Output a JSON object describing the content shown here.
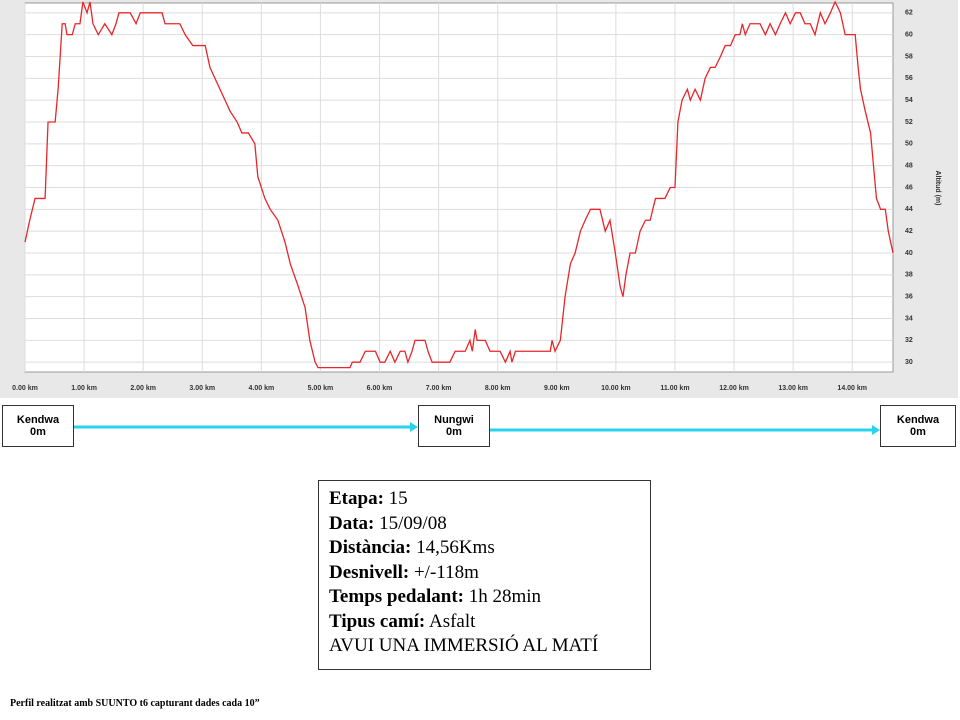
{
  "chart_data": {
    "type": "line",
    "y_label": "Altitud (m)",
    "color": "#e8262a",
    "grid": true,
    "x": [
      0,
      0.08,
      0.17,
      0.34,
      0.39,
      0.51,
      0.56,
      0.63,
      0.68,
      0.71,
      0.8,
      0.85,
      0.93,
      0.98,
      1.05,
      1.1,
      1.15,
      1.24,
      1.35,
      1.47,
      1.54,
      1.59,
      1.78,
      1.88,
      1.95,
      2.32,
      2.37,
      2.62,
      2.71,
      2.84,
      3.05,
      3.13,
      3.3,
      3.47,
      3.59,
      3.67,
      3.78,
      3.89,
      3.94,
      4.06,
      4.15,
      4.28,
      4.4,
      4.49,
      4.62,
      4.74,
      4.82,
      4.91,
      4.96,
      5.5,
      5.54,
      5.67,
      5.76,
      5.93,
      6.01,
      6.09,
      6.18,
      6.26,
      6.35,
      6.43,
      6.48,
      6.55,
      6.6,
      6.77,
      6.82,
      6.89,
      7.19,
      7.28,
      7.45,
      7.53,
      7.57,
      7.62,
      7.65,
      7.79,
      7.87,
      8.04,
      8.13,
      8.21,
      8.24,
      8.3,
      8.8,
      8.89,
      8.92,
      8.97,
      9.06,
      9.14,
      9.23,
      9.31,
      9.4,
      9.48,
      9.57,
      9.73,
      9.82,
      9.9,
      9.99,
      10.07,
      10.12,
      10.17,
      10.24,
      10.33,
      10.41,
      10.5,
      10.58,
      10.67,
      10.83,
      10.92,
      11.0,
      11.05,
      11.12,
      11.21,
      11.26,
      11.34,
      11.43,
      11.51,
      11.6,
      11.68,
      11.77,
      11.85,
      11.94,
      12.02,
      12.1,
      12.14,
      12.19,
      12.27,
      12.44,
      12.53,
      12.61,
      12.7,
      12.78,
      12.87,
      12.95,
      13.04,
      13.12,
      13.2,
      13.29,
      13.37,
      13.46,
      13.54,
      13.63,
      13.71,
      13.8,
      13.88,
      14.05,
      14.1,
      14.14,
      14.22,
      14.31,
      14.36,
      14.41,
      14.48,
      14.56,
      14.61,
      14.69
    ],
    "values": [
      41,
      43,
      45,
      45,
      52,
      52,
      55,
      61,
      61,
      60,
      60,
      61,
      61,
      63,
      62,
      63,
      61,
      60,
      61,
      60,
      61,
      62,
      62,
      61,
      62,
      62,
      61,
      61,
      60,
      59,
      59,
      57,
      55,
      53,
      52,
      51,
      51,
      50,
      47,
      45,
      44,
      43,
      41,
      39,
      37,
      35,
      32,
      30,
      29.5,
      29.5,
      30,
      30,
      31,
      31,
      30,
      30,
      31,
      30,
      31,
      31,
      30,
      31,
      32,
      32,
      31,
      30,
      30,
      31,
      31,
      32,
      31,
      33,
      32,
      32,
      31,
      31,
      30,
      31,
      30,
      31,
      31,
      31,
      32,
      31,
      32,
      36,
      39,
      40,
      42,
      43,
      44,
      44,
      42,
      43,
      40,
      37,
      36,
      38,
      40,
      40,
      42,
      43,
      43,
      45,
      45,
      46,
      46,
      52,
      54,
      55,
      54,
      55,
      54,
      56,
      57,
      57,
      58,
      59,
      59,
      60,
      60,
      61,
      60,
      61,
      61,
      60,
      61,
      60,
      61,
      62,
      61,
      62,
      62,
      61,
      61,
      60,
      62,
      61,
      62,
      63,
      62,
      60,
      60,
      57,
      55,
      53,
      51,
      48,
      45,
      44,
      44,
      42,
      40
    ],
    "xlim": [
      0,
      14.69
    ],
    "ylim": [
      29.1,
      62.9
    ],
    "xticks": [
      {
        "value": 0,
        "label": "0.00 km"
      },
      {
        "value": 1,
        "label": "1.00 km"
      },
      {
        "value": 2,
        "label": "2.00 km"
      },
      {
        "value": 3,
        "label": "3.00 km"
      },
      {
        "value": 4,
        "label": "4.00 km"
      },
      {
        "value": 5,
        "label": "5.00 km"
      },
      {
        "value": 6,
        "label": "6.00 km"
      },
      {
        "value": 7,
        "label": "7.00 km"
      },
      {
        "value": 8,
        "label": "8.00 km"
      },
      {
        "value": 9,
        "label": "9.00 km"
      },
      {
        "value": 10,
        "label": "10.00 km"
      },
      {
        "value": 11,
        "label": "11.00 km"
      },
      {
        "value": 12,
        "label": "12.00 km"
      },
      {
        "value": 13,
        "label": "13.00 km"
      },
      {
        "value": 14,
        "label": "14.00 km"
      }
    ],
    "yticks": [
      30,
      32,
      34,
      36,
      38,
      40,
      42,
      44,
      46,
      48,
      50,
      52,
      54,
      56,
      58,
      60,
      62
    ]
  },
  "route": [
    {
      "name": "Kendwa",
      "elevation": "0m"
    },
    {
      "name": "Nungwi",
      "elevation": "0m"
    },
    {
      "name": "Kendwa",
      "elevation": "0m"
    }
  ],
  "info": {
    "rows": [
      {
        "label": "Etapa:",
        "value": "15"
      },
      {
        "label": "Data:",
        "value": "15/09/08"
      },
      {
        "label": "Distància:",
        "value": "14,56Kms"
      },
      {
        "label": "Desnivell:",
        "value": "+/-118m"
      },
      {
        "label": "Temps pedalant:",
        "value": "1h 28min"
      },
      {
        "label": "Tipus camí:",
        "value": "Asfalt"
      }
    ],
    "note": "AVUI UNA IMMERSIÓ AL MATÍ"
  },
  "footer": "Perfil realitzat amb SUUNTO  t6 capturant dades cada 10”"
}
